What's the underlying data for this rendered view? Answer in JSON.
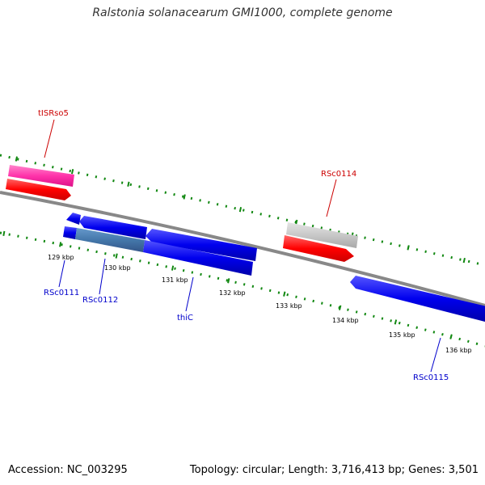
{
  "title": "Ralstonia solanacearum GMI1000, complete genome",
  "footer": {
    "accession": "Accession: NC_003295",
    "topology": "Topology: circular; Length: 3,716,413 bp; Genes: 3,501"
  },
  "ticks": [
    "129 kbp",
    "130 kbp",
    "131 kbp",
    "132 kbp",
    "133 kbp",
    "134 kbp",
    "135 kbp",
    "136 kbp"
  ],
  "labels": {
    "tISRso5": "tISRso5",
    "RSc0114": "RSc0114",
    "RSc0111": "RSc0111",
    "RSc0112": "RSc0112",
    "thiC": "thiC",
    "RSc0115": "RSc0115"
  },
  "colors": {
    "forward_label": "#cc0000",
    "reverse_label": "#0000cc",
    "red_feature": "#ff0000",
    "pink_feature": "#ff33aa",
    "blue_feature": "#0000ee",
    "steel_feature": "#4477aa",
    "grey_feature": "#c8c8c8",
    "backbone": "#888888",
    "tick_marks": "#118811"
  }
}
